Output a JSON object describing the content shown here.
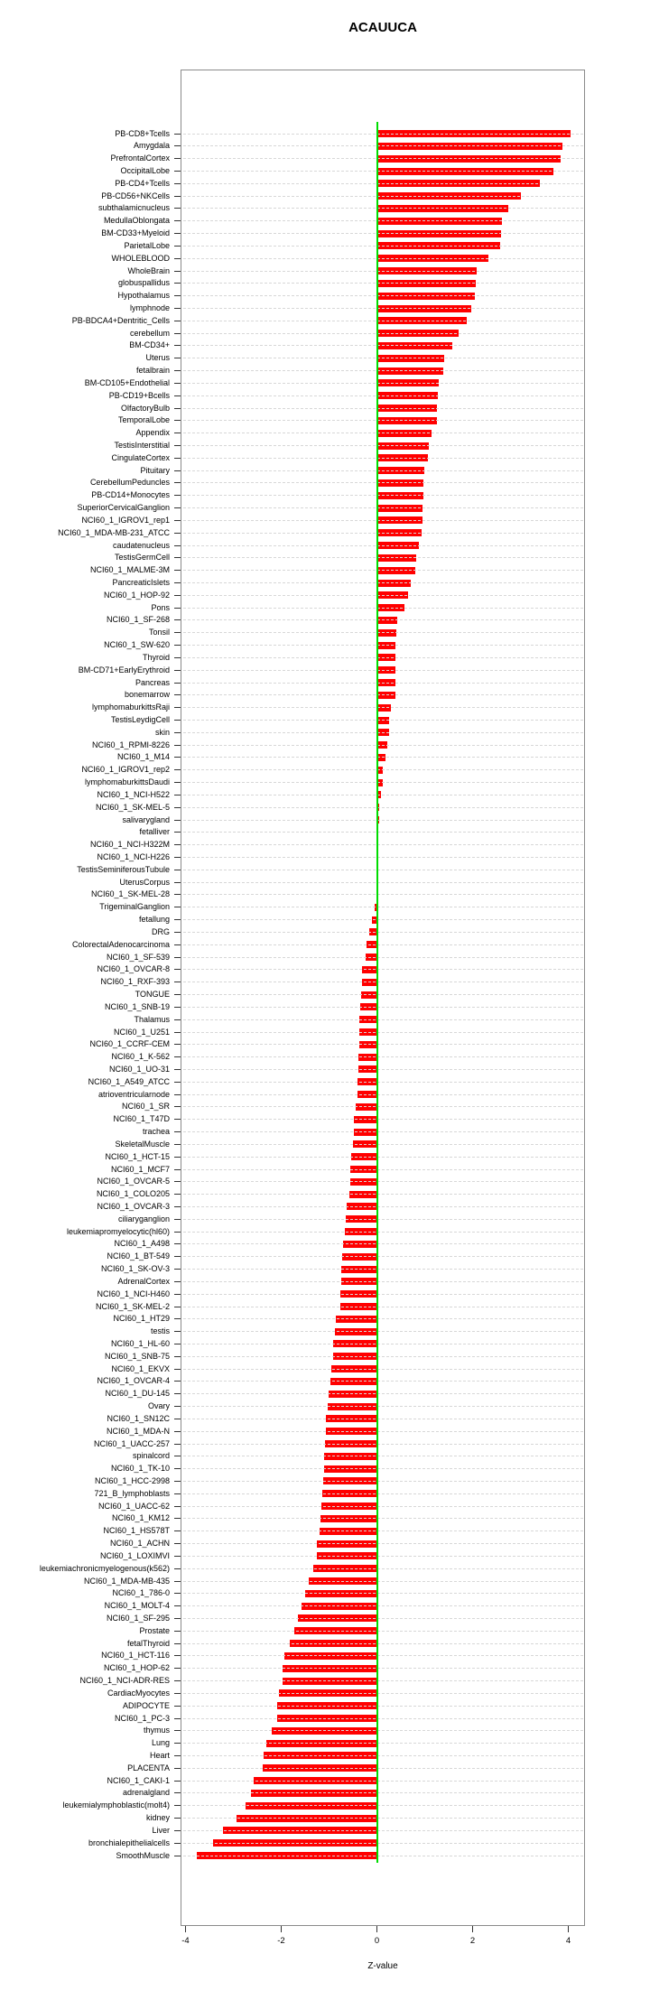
{
  "page": {
    "title": "ACAUUCA"
  },
  "chart_data": {
    "type": "bar",
    "orientation": "horizontal",
    "title": "ACAUUCA",
    "xlabel": "Z-value",
    "xlim": [
      -4,
      4
    ],
    "xticks": [
      -4,
      -2,
      0,
      2,
      4
    ],
    "grid": "horizontal dashed line per category",
    "bar_color": "#ff0000",
    "zero_line_color": "#00dc00",
    "categories": [
      "PB-CD8+Tcells",
      "Amygdala",
      "PrefrontalCortex",
      "OccipitalLobe",
      "PB-CD4+Tcells",
      "PB-CD56+NKCells",
      "subthalamicnucleus",
      "MedullaOblongata",
      "BM-CD33+Myeloid",
      "ParietalLobe",
      "WHOLEBLOOD",
      "WholeBrain",
      "globuspallidus",
      "Hypothalamus",
      "lymphnode",
      "PB-BDCA4+Dentritic_Cells",
      "cerebellum",
      "BM-CD34+",
      "Uterus",
      "fetalbrain",
      "BM-CD105+Endothelial",
      "PB-CD19+Bcells",
      "OlfactoryBulb",
      "TemporalLobe",
      "Appendix",
      "TestisInterstitial",
      "CingulateCortex",
      "Pituitary",
      "CerebellumPeduncles",
      "PB-CD14+Monocytes",
      "SuperiorCervicalGanglion",
      "NCI60_1_IGROV1_rep1",
      "NCI60_1_MDA-MB-231_ATCC",
      "caudatenucleus",
      "TestisGermCell",
      "NCI60_1_MALME-3M",
      "PancreaticIslets",
      "NCI60_1_HOP-92",
      "Pons",
      "NCI60_1_SF-268",
      "Tonsil",
      "NCI60_1_SW-620",
      "Thyroid",
      "BM-CD71+EarlyErythroid",
      "Pancreas",
      "bonemarrow",
      "lymphomaburkittsRaji",
      "TestisLeydigCell",
      "skin",
      "NCI60_1_RPMI-8226",
      "NCI60_1_M14",
      "NCI60_1_IGROV1_rep2",
      "lymphomaburkittsDaudi",
      "NCI60_1_NCI-H522",
      "NCI60_1_SK-MEL-5",
      "salivarygland",
      "fetalliver",
      "NCI60_1_NCI-H322M",
      "NCI60_1_NCI-H226",
      "TestisSeminiferousTubule",
      "UterusCorpus",
      "NCI60_1_SK-MEL-28",
      "TrigeminalGanglion",
      "fetallung",
      "DRG",
      "ColorectalAdenocarcinoma",
      "NCI60_1_SF-539",
      "NCI60_1_OVCAR-8",
      "NCI60_1_RXF-393",
      "TONGUE",
      "NCI60_1_SNB-19",
      "Thalamus",
      "NCI60_1_U251",
      "NCI60_1_CCRF-CEM",
      "NCI60_1_K-562",
      "NCI60_1_UO-31",
      "NCI60_1_A549_ATCC",
      "atrioventricularnode",
      "NCI60_1_SR",
      "NCI60_1_T47D",
      "trachea",
      "SkeletalMuscle",
      "NCI60_1_HCT-15",
      "NCI60_1_MCF7",
      "NCI60_1_OVCAR-5",
      "NCI60_1_COLO205",
      "NCI60_1_OVCAR-3",
      "ciliaryganglion",
      "leukemiapromyelocytic(hl60)",
      "NCI60_1_A498",
      "NCI60_1_BT-549",
      "NCI60_1_SK-OV-3",
      "AdrenalCortex",
      "NCI60_1_NCI-H460",
      "NCI60_1_SK-MEL-2",
      "NCI60_1_HT29",
      "testis",
      "NCI60_1_HL-60",
      "NCI60_1_SNB-75",
      "NCI60_1_EKVX",
      "NCI60_1_OVCAR-4",
      "NCI60_1_DU-145",
      "Ovary",
      "NCI60_1_SN12C",
      "NCI60_1_MDA-N",
      "NCI60_1_UACC-257",
      "spinalcord",
      "NCI60_1_TK-10",
      "NCI60_1_HCC-2998",
      "721_B_lymphoblasts",
      "NCI60_1_UACC-62",
      "NCI60_1_KM12",
      "NCI60_1_HS578T",
      "NCI60_1_ACHN",
      "NCI60_1_LOXIMVI",
      "leukemiachronicmyelogenous(k562)",
      "NCI60_1_MDA-MB-435",
      "NCI60_1_786-0",
      "NCI60_1_MOLT-4",
      "NCI60_1_SF-295",
      "Prostate",
      "fetalThyroid",
      "NCI60_1_HCT-116",
      "NCI60_1_HOP-62",
      "NCI60_1_NCI-ADR-RES",
      "CardiacMyocytes",
      "ADIPOCYTE",
      "NCI60_1_PC-3",
      "thymus",
      "Lung",
      "Heart",
      "PLACENTA",
      "NCI60_1_CAKI-1",
      "adrenalgland",
      "leukemialymphoblastic(molt4)",
      "kidney",
      "Liver",
      "bronchialepithelialcells",
      "SmoothMuscle"
    ],
    "values": [
      4.05,
      3.87,
      3.83,
      3.68,
      3.4,
      3.0,
      2.74,
      2.62,
      2.6,
      2.57,
      2.32,
      2.08,
      2.06,
      2.04,
      1.98,
      1.87,
      1.7,
      1.58,
      1.4,
      1.38,
      1.3,
      1.27,
      1.26,
      1.25,
      1.15,
      1.09,
      1.06,
      0.99,
      0.98,
      0.97,
      0.96,
      0.95,
      0.94,
      0.87,
      0.82,
      0.8,
      0.7,
      0.65,
      0.58,
      0.42,
      0.4,
      0.39,
      0.39,
      0.39,
      0.38,
      0.38,
      0.29,
      0.26,
      0.25,
      0.21,
      0.17,
      0.12,
      0.12,
      0.09,
      0.05,
      0.04,
      0.03,
      0.02,
      0.02,
      0.01,
      0.01,
      -0.01,
      -0.04,
      -0.1,
      -0.17,
      -0.21,
      -0.24,
      -0.32,
      -0.32,
      -0.34,
      -0.35,
      -0.36,
      -0.36,
      -0.37,
      -0.38,
      -0.39,
      -0.4,
      -0.41,
      -0.45,
      -0.48,
      -0.49,
      -0.51,
      -0.54,
      -0.55,
      -0.55,
      -0.57,
      -0.64,
      -0.65,
      -0.68,
      -0.7,
      -0.72,
      -0.74,
      -0.75,
      -0.76,
      -0.76,
      -0.85,
      -0.88,
      -0.92,
      -0.92,
      -0.96,
      -0.98,
      -1.01,
      -1.02,
      -1.07,
      -1.07,
      -1.09,
      -1.11,
      -1.11,
      -1.13,
      -1.14,
      -1.16,
      -1.18,
      -1.19,
      -1.25,
      -1.25,
      -1.33,
      -1.42,
      -1.5,
      -1.58,
      -1.65,
      -1.72,
      -1.83,
      -1.94,
      -1.98,
      -1.98,
      -2.04,
      -2.09,
      -2.09,
      -2.19,
      -2.32,
      -2.36,
      -2.38,
      -2.57,
      -2.64,
      -2.75,
      -2.94,
      -3.21,
      -3.42,
      -3.77
    ]
  }
}
